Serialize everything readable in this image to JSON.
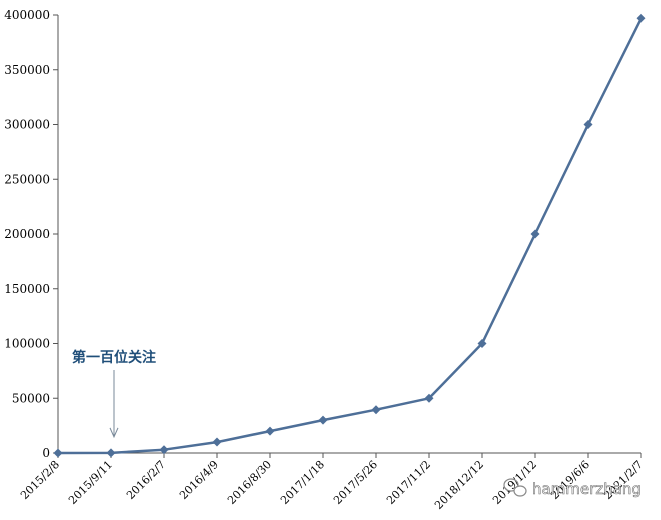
{
  "chart_data": {
    "type": "line",
    "title": "",
    "xlabel": "",
    "ylabel": "",
    "x": [
      "2015/2/8",
      "2015/9/11",
      "2016/2/7",
      "2016/4/9",
      "2016/8/30",
      "2017/1/18",
      "2017/5/26",
      "2017/11/2",
      "2018/12/12",
      "2019/1/12",
      "2019/6/6",
      "2021/2/7"
    ],
    "x_tick_labels": [
      "2015/2/8",
      "2015/9/11",
      "2016/2/7",
      "2016/4/9",
      "2016/8/30",
      "2017/1/18",
      "2017/5/26",
      "2017/11/2",
      "2018/12/12",
      "2019/1/12",
      "2019/6/6",
      "2021/2/7"
    ],
    "series": [
      {
        "values": [
          0,
          100,
          3000,
          10000,
          20000,
          30000,
          39500,
          50000,
          100000,
          200000,
          300000,
          397000
        ]
      }
    ],
    "ylim": [
      0,
      400000
    ],
    "y_ticks": [
      "0",
      "50000",
      "100000",
      "150000",
      "200000",
      "250000",
      "300000",
      "350000",
      "400000"
    ],
    "grid": false,
    "line_color": "#4e6f98",
    "marker": "diamond",
    "annotation": {
      "text": "第一百位关注",
      "target_index": 1
    },
    "watermark": {
      "icon": "wechat-icon",
      "text": "hammerzhang"
    }
  }
}
